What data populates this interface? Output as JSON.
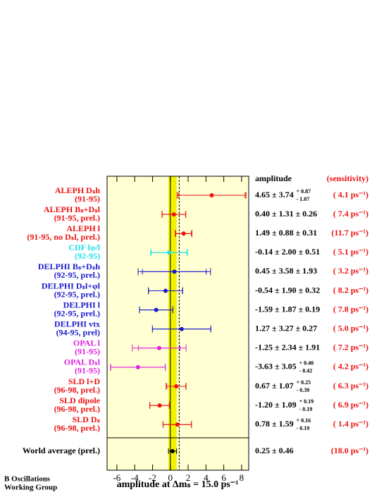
{
  "chart_data": {
    "type": "errorbar",
    "amplitude_header": "amplitude",
    "sensitivity_header": "(sensitivity)",
    "xlabel": "amplitude at Δmₛ = 15.0 ps⁻¹",
    "footnote": [
      "B Oscillations",
      "Working Group"
    ],
    "xlim": [
      -7.1,
      8.8
    ],
    "xticks": [
      -6,
      -4,
      -2,
      0,
      2,
      4,
      6,
      8
    ],
    "reference_line": 1,
    "rows": [
      {
        "name": "ALEPH Dₛh",
        "period": "(91-95)",
        "color": "#ee1111",
        "value": 4.65,
        "stat": 3.74,
        "syst": [
          0.87,
          -1.07
        ],
        "amplitude_label": "4.65 ± 3.74",
        "syst_labels": [
          "+ 0.87",
          "- 1.07"
        ],
        "sensitivity_label": "( 4.1 ps⁻¹)"
      },
      {
        "name": "ALEPH Bₛ+Dₛl",
        "period": "(91-95, prel.)",
        "color": "#ee1111",
        "value": 0.4,
        "stat": 1.31,
        "syst": 0.26,
        "amplitude_label": "0.40 ± 1.31 ± 0.26",
        "sensitivity_label": "( 7.4 ps⁻¹)"
      },
      {
        "name": "ALEPH l",
        "period": "(91-95, no Dₛl, prel.)",
        "color": "#ee1111",
        "value": 1.49,
        "stat": 0.88,
        "syst": 0.31,
        "amplitude_label": "1.49 ± 0.88 ± 0.31",
        "sensitivity_label": "(11.7 ps⁻¹)"
      },
      {
        "name": "CDF lφ/l",
        "period": "(92-95)",
        "color": "#22e0e8",
        "value": -0.14,
        "stat": 2.0,
        "syst": 0.51,
        "amplitude_label": "-0.14 ± 2.00 ± 0.51",
        "sensitivity_label": "( 5.1 ps⁻¹)"
      },
      {
        "name": "DELPHI Bₛ+Dₛh",
        "period": "(92-95, prel.)",
        "color": "#1a1acc",
        "value": 0.45,
        "stat": 3.58,
        "syst": 1.93,
        "amplitude_label": "0.45 ± 3.58 ± 1.93",
        "sensitivity_label": "( 3.2 ps⁻¹)"
      },
      {
        "name": "DELPHI Dₛl+φl",
        "period": "(92-95, prel.)",
        "color": "#1a1acc",
        "value": -0.54,
        "stat": 1.9,
        "syst": 0.32,
        "amplitude_label": "-0.54 ± 1.90 ± 0.32",
        "sensitivity_label": "( 8.2 ps⁻¹)"
      },
      {
        "name": "DELPHI l",
        "period": "(92-95, prel.)",
        "color": "#1a1acc",
        "value": -1.59,
        "stat": 1.87,
        "syst": 0.19,
        "amplitude_label": "-1.59 ± 1.87 ± 0.19",
        "sensitivity_label": "( 7.8 ps⁻¹)"
      },
      {
        "name": "DELPHI vtx",
        "period": "(94-95, prel)",
        "color": "#1a1acc",
        "value": 1.27,
        "stat": 3.27,
        "syst": 0.27,
        "amplitude_label": "1.27 ± 3.27 ± 0.27",
        "sensitivity_label": "( 5.0 ps⁻¹)"
      },
      {
        "name": "OPAL l",
        "period": "(91-95)",
        "color": "#e020e0",
        "value": -1.25,
        "stat": 2.34,
        "syst": 1.91,
        "amplitude_label": "-1.25 ± 2.34 ± 1.91",
        "sensitivity_label": "( 7.2 ps⁻¹)"
      },
      {
        "name": "OPAL Dₛl",
        "period": "(91-95)",
        "color": "#e020e0",
        "value": -3.63,
        "stat": 3.05,
        "syst": [
          0.4,
          -0.42
        ],
        "amplitude_label": "-3.63 ± 3.05",
        "syst_labels": [
          "+ 0.40",
          "- 0.42"
        ],
        "sensitivity_label": "( 4.2 ps⁻¹)"
      },
      {
        "name": "SLD l+D",
        "period": "(96-98, prel.)",
        "color": "#ee1111",
        "value": 0.67,
        "stat": 1.07,
        "syst": [
          0.25,
          -0.39
        ],
        "amplitude_label": "0.67 ± 1.07",
        "syst_labels": [
          "+ 0.25",
          "- 0.39"
        ],
        "sensitivity_label": "( 6.3 ps⁻¹)"
      },
      {
        "name": "SLD dipole",
        "period": "(96-98, prel.)",
        "color": "#ee1111",
        "value": -1.2,
        "stat": 1.09,
        "syst": [
          0.19,
          -0.19
        ],
        "amplitude_label": "-1.20 ± 1.09",
        "syst_labels": [
          "+ 0.19",
          "- 0.19"
        ],
        "sensitivity_label": "( 6.9 ps⁻¹)"
      },
      {
        "name": "SLD Dₛ",
        "period": "(96-98, prel.)",
        "color": "#ee1111",
        "value": 0.78,
        "stat": 1.59,
        "syst": [
          0.16,
          -0.19
        ],
        "amplitude_label": "0.78 ± 1.59",
        "syst_labels": [
          "+ 0.16",
          "- 0.19"
        ],
        "sensitivity_label": "( 1.4 ps⁻¹)"
      }
    ],
    "world_average": {
      "name": "World average (prel.)",
      "color": "#000000",
      "value": 0.25,
      "stat": 0.46,
      "amplitude_label": "0.25 ± 0.46",
      "sensitivity_label": "(18.0 ps⁻¹)"
    }
  }
}
